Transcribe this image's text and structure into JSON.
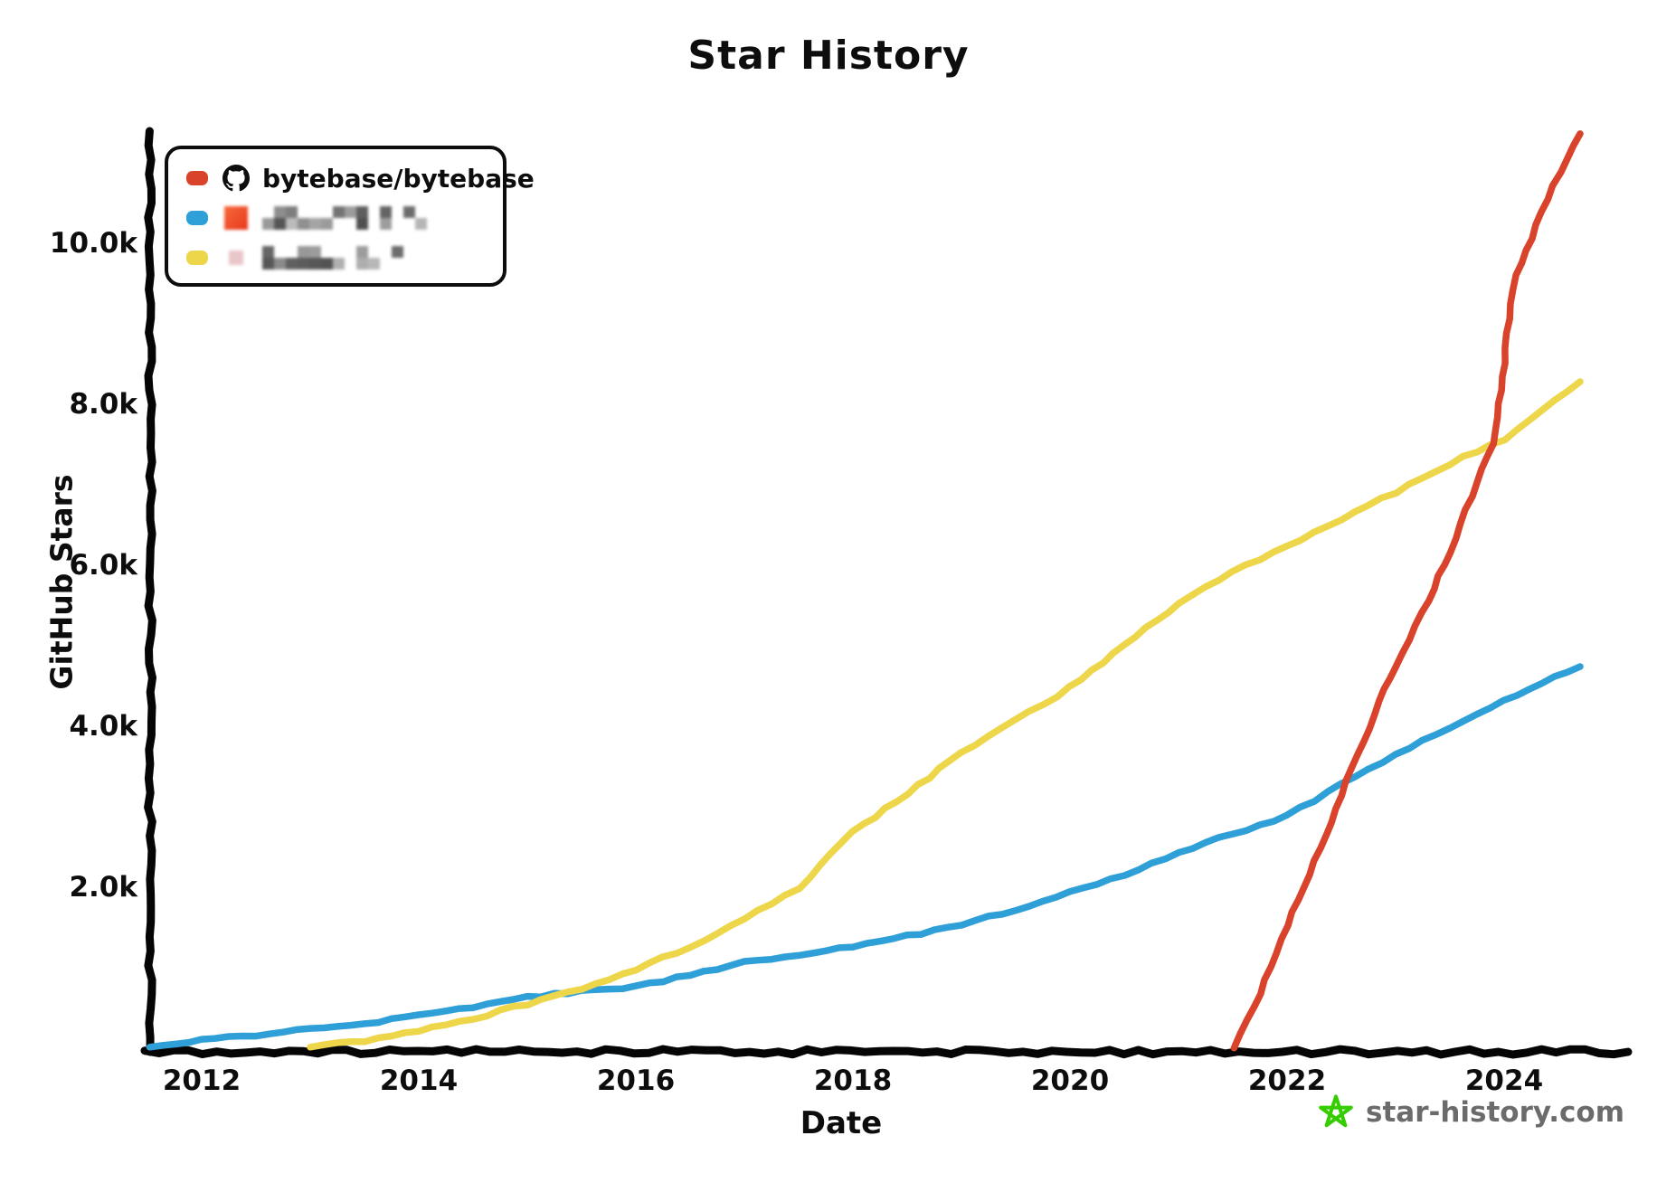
{
  "title": "Star History",
  "legend": {
    "items": [
      {
        "label": "bytebase/bytebase",
        "redacted": false,
        "swatch_color": "#d9432b",
        "avatar": "github-logo"
      },
      {
        "label": "",
        "redacted": true,
        "swatch_color": "#2f9fd7",
        "avatar": "blurred-orange-avatar"
      },
      {
        "label": "",
        "redacted": true,
        "swatch_color": "#eed64b",
        "avatar": "blurred-pink-avatar"
      }
    ]
  },
  "watermark": {
    "text": "star-history.com",
    "icon_color": "#35cc00",
    "text_color": "#6b6b6b"
  },
  "chart_data": {
    "type": "line",
    "title": "Star History",
    "xlabel": "Date",
    "ylabel": "GitHub Stars",
    "grid": false,
    "legend_position": "top-left",
    "xlim": [
      2011.5,
      2024.85
    ],
    "ylim": [
      0,
      11700
    ],
    "x_ticks": [
      {
        "value": 2012,
        "label": "2012"
      },
      {
        "value": 2014,
        "label": "2014"
      },
      {
        "value": 2016,
        "label": "2016"
      },
      {
        "value": 2018,
        "label": "2018"
      },
      {
        "value": 2020,
        "label": "2020"
      },
      {
        "value": 2022,
        "label": "2022"
      },
      {
        "value": 2024,
        "label": "2024"
      }
    ],
    "y_ticks": [
      {
        "value": 2000,
        "label": "2.0k"
      },
      {
        "value": 4000,
        "label": "4.0k"
      },
      {
        "value": 6000,
        "label": "6.0k"
      },
      {
        "value": 8000,
        "label": "8.0k"
      },
      {
        "value": 10000,
        "label": "10.0k"
      }
    ],
    "series": [
      {
        "name": "bytebase/bytebase",
        "redacted": false,
        "color": "#d9432b",
        "points": [
          [
            2021.5,
            0
          ],
          [
            2021.7,
            500
          ],
          [
            2021.85,
            1000
          ],
          [
            2022,
            1520
          ],
          [
            2022.2,
            2150
          ],
          [
            2022.4,
            2800
          ],
          [
            2022.55,
            3300
          ],
          [
            2022.7,
            3800
          ],
          [
            2022.85,
            4300
          ],
          [
            2023,
            4730
          ],
          [
            2023.25,
            5400
          ],
          [
            2023.5,
            6150
          ],
          [
            2023.7,
            6850
          ],
          [
            2023.9,
            7500
          ],
          [
            2024,
            8500
          ],
          [
            2024.1,
            9600
          ],
          [
            2024.25,
            10050
          ],
          [
            2024.45,
            10700
          ],
          [
            2024.6,
            11050
          ],
          [
            2024.7,
            11350
          ]
        ]
      },
      {
        "name": "",
        "redacted": true,
        "color": "#2f9fd7",
        "points": [
          [
            2011.52,
            0
          ],
          [
            2012,
            90
          ],
          [
            2012.5,
            155
          ],
          [
            2013,
            220
          ],
          [
            2013.5,
            300
          ],
          [
            2014,
            390
          ],
          [
            2014.5,
            500
          ],
          [
            2015,
            620
          ],
          [
            2015.5,
            700
          ],
          [
            2016,
            760
          ],
          [
            2016.5,
            900
          ],
          [
            2017,
            1050
          ],
          [
            2017.5,
            1140
          ],
          [
            2018,
            1250
          ],
          [
            2018.5,
            1380
          ],
          [
            2019,
            1530
          ],
          [
            2019.5,
            1700
          ],
          [
            2020,
            1920
          ],
          [
            2020.5,
            2150
          ],
          [
            2021,
            2420
          ],
          [
            2021.5,
            2650
          ],
          [
            2022,
            2870
          ],
          [
            2022.5,
            3260
          ],
          [
            2023,
            3640
          ],
          [
            2023.5,
            3960
          ],
          [
            2024,
            4300
          ],
          [
            2024.35,
            4520
          ],
          [
            2024.7,
            4730
          ]
        ]
      },
      {
        "name": "",
        "redacted": true,
        "color": "#eed64b",
        "points": [
          [
            2013,
            0
          ],
          [
            2013.5,
            80
          ],
          [
            2014,
            200
          ],
          [
            2014.5,
            360
          ],
          [
            2015,
            540
          ],
          [
            2015.5,
            730
          ],
          [
            2016,
            970
          ],
          [
            2016.5,
            1250
          ],
          [
            2017,
            1600
          ],
          [
            2017.5,
            1980
          ],
          [
            2018,
            2670
          ],
          [
            2018.5,
            3160
          ],
          [
            2019,
            3650
          ],
          [
            2019.5,
            4060
          ],
          [
            2020,
            4470
          ],
          [
            2020.5,
            5000
          ],
          [
            2021,
            5520
          ],
          [
            2021.5,
            5900
          ],
          [
            2022,
            6220
          ],
          [
            2022.5,
            6560
          ],
          [
            2023,
            6900
          ],
          [
            2023.5,
            7250
          ],
          [
            2024,
            7560
          ],
          [
            2024.35,
            7900
          ],
          [
            2024.7,
            8270
          ]
        ]
      }
    ]
  }
}
